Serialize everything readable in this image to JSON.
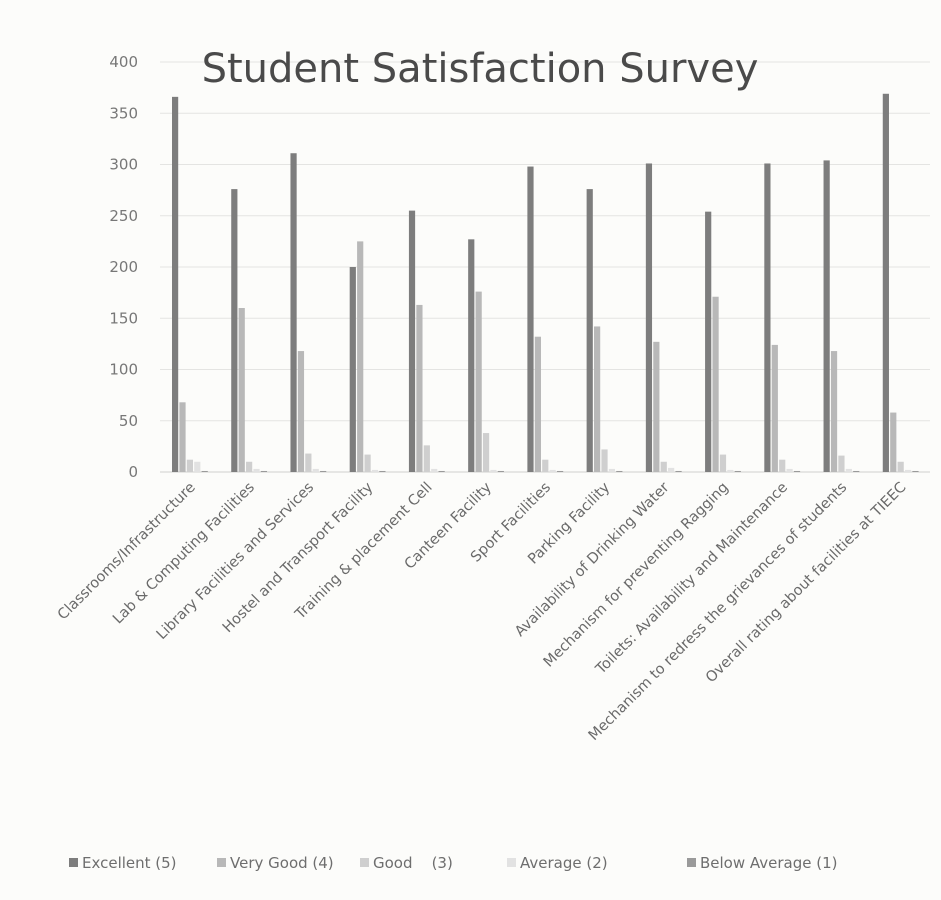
{
  "chart_data": {
    "type": "bar",
    "title": "Student Satisfaction Survey",
    "xlabel": "",
    "ylabel": "",
    "ylim": [
      0,
      400
    ],
    "yticks": [
      0,
      50,
      100,
      150,
      200,
      250,
      300,
      350,
      400
    ],
    "grid": true,
    "legend_position": "bottom",
    "categories": [
      "Classrooms/Infrastructure",
      "Lab & Computing Facilities",
      "Library Facilities and Services",
      "Hostel and Transport Facility",
      "Training & placement Cell",
      "Canteen Facility",
      "Sport Facilities",
      "Parking Facility",
      "Availability of Drinking Water",
      "Mechanism for preventing Ragging",
      "Toilets: Availability and Maintenance",
      "Mechanism to redress the grievances of students",
      "Overall rating about facilities at TIEEC"
    ],
    "series": [
      {
        "name": "Excellent (5)",
        "color": "#7d7d7d",
        "values": [
          366,
          276,
          311,
          200,
          255,
          227,
          298,
          276,
          301,
          254,
          301,
          304,
          369
        ]
      },
      {
        "name": "Very Good (4)",
        "color": "#b8b8b8",
        "values": [
          68,
          160,
          118,
          225,
          163,
          176,
          132,
          142,
          127,
          171,
          124,
          118,
          58
        ]
      },
      {
        "name": "Good    (3)",
        "color": "#cfcfcf",
        "values": [
          12,
          10,
          18,
          17,
          26,
          38,
          12,
          22,
          10,
          17,
          12,
          16,
          10
        ]
      },
      {
        "name": "Average (2)",
        "color": "#e2e2e2",
        "values": [
          10,
          3,
          3,
          2,
          3,
          2,
          2,
          3,
          4,
          2,
          3,
          3,
          2
        ]
      },
      {
        "name": "Below Average (1)",
        "color": "#9a9a9a",
        "values": [
          1,
          1,
          1,
          1,
          1,
          1,
          1,
          1,
          1,
          1,
          1,
          1,
          1
        ]
      }
    ]
  }
}
